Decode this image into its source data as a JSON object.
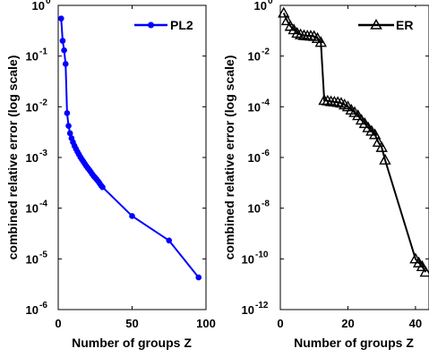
{
  "chart_data": [
    {
      "type": "line",
      "scale_y": "log",
      "xlabel": "Number of groups Z",
      "ylabel": "combined relative error (log scale)",
      "xlim": [
        0,
        100
      ],
      "ylim": [
        1e-06,
        1
      ],
      "xticks": [
        0,
        50,
        100
      ],
      "yticks": [
        {
          "base": "10",
          "exp": "0",
          "v": 1
        },
        {
          "base": "10",
          "exp": "-1",
          "v": 0.1
        },
        {
          "base": "10",
          "exp": "-2",
          "v": 0.01
        },
        {
          "base": "10",
          "exp": "-3",
          "v": 0.001
        },
        {
          "base": "10",
          "exp": "-4",
          "v": 0.0001
        },
        {
          "base": "10",
          "exp": "-5",
          "v": 1e-05
        },
        {
          "base": "10",
          "exp": "-6",
          "v": 1e-06
        }
      ],
      "grid": false,
      "legend_position": "top-right",
      "series": [
        {
          "name": "PL2",
          "color": "#0000ff",
          "marker": "circle",
          "x": [
            2,
            3,
            4,
            5,
            6,
            7,
            8,
            9,
            10,
            11,
            12,
            13,
            14,
            15,
            16,
            17,
            18,
            19,
            20,
            21,
            22,
            23,
            24,
            25,
            26,
            27,
            28,
            29,
            30,
            50,
            75,
            95
          ],
          "y": [
            0.55,
            0.2,
            0.13,
            0.07,
            0.0075,
            0.0042,
            0.003,
            0.0024,
            0.002,
            0.0017,
            0.00148,
            0.0013,
            0.00115,
            0.00102,
            0.00092,
            0.00083,
            0.00075,
            0.00068,
            0.00062,
            0.00057,
            0.00052,
            0.00047,
            0.00043,
            0.0004,
            0.00037,
            0.00034,
            0.00031,
            0.00028,
            0.00026,
            7e-05,
            2.3e-05,
            4.3e-06
          ]
        }
      ]
    },
    {
      "type": "line",
      "scale_y": "log",
      "xlabel": "Number of groups Z",
      "ylabel": "combined relative error (log scale)",
      "xlim": [
        0,
        44
      ],
      "ylim": [
        1e-12,
        1
      ],
      "xticks": [
        0,
        20,
        40
      ],
      "yticks": [
        {
          "base": "10",
          "exp": "0",
          "v": 1
        },
        {
          "base": "10",
          "exp": "-2",
          "v": 0.01
        },
        {
          "base": "10",
          "exp": "-4",
          "v": 0.0001
        },
        {
          "base": "10",
          "exp": "-6",
          "v": 1e-06
        },
        {
          "base": "10",
          "exp": "-8",
          "v": 1e-08
        },
        {
          "base": "10",
          "exp": "-10",
          "v": 1e-10
        },
        {
          "base": "10",
          "exp": "-12",
          "v": 1e-12
        }
      ],
      "grid": false,
      "legend_position": "top-right",
      "series": [
        {
          "name": "ER",
          "color": "#000000",
          "marker": "triangle",
          "x": [
            1,
            2,
            3,
            4,
            5,
            6,
            7,
            8,
            9,
            10,
            11,
            12,
            13,
            14,
            15,
            16,
            17,
            18,
            19,
            20,
            21,
            22,
            23,
            24,
            25,
            26,
            27,
            28,
            29,
            30,
            31,
            40,
            41,
            42,
            43
          ],
          "y": [
            0.5,
            0.25,
            0.15,
            0.11,
            0.08,
            0.07,
            0.065,
            0.063,
            0.062,
            0.06,
            0.05,
            0.035,
            0.00018,
            0.00017,
            0.00016,
            0.000155,
            0.00015,
            0.00014,
            0.00012,
            0.0001,
            7.5e-05,
            6e-05,
            4.5e-05,
            3e-05,
            2.2e-05,
            1.5e-05,
            1.1e-05,
            8e-06,
            4e-06,
            2.5e-06,
            8e-07,
            1e-10,
            7e-11,
            5e-11,
            3e-11
          ]
        }
      ]
    }
  ]
}
